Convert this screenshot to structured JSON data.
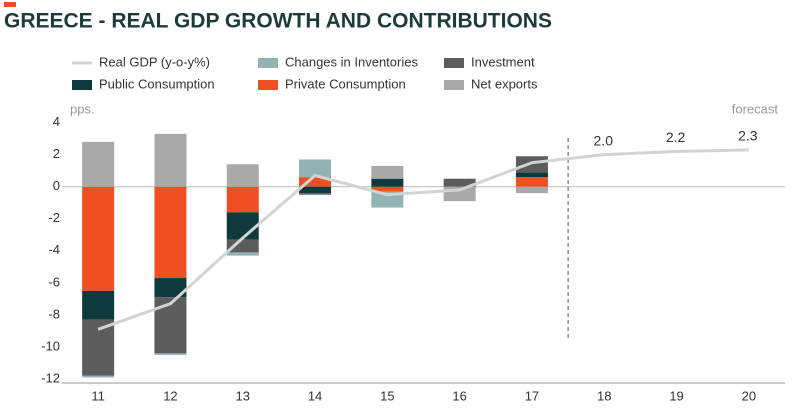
{
  "chart_data": {
    "type": "stacked_bar_line",
    "title": "GREECE - REAL GDP GROWTH AND CONTRIBUTIONS",
    "y_label": "pps.",
    "annotation": "forecast",
    "categories": [
      "11",
      "12",
      "13",
      "14",
      "15",
      "16",
      "17",
      "18",
      "19",
      "20"
    ],
    "series": [
      {
        "name": "Private Consumption",
        "color": "#f04e23",
        "values": [
          -6.5,
          -5.7,
          -1.6,
          0.6,
          -0.3,
          null,
          0.6,
          null,
          null,
          null
        ]
      },
      {
        "name": "Public Consumption",
        "color": "#0e3a3d",
        "values": [
          -1.8,
          -1.2,
          -1.7,
          -0.4,
          0.5,
          null,
          0.3,
          null,
          null,
          null
        ]
      },
      {
        "name": "Investment",
        "color": "#5c5c5c",
        "values": [
          -3.5,
          -3.5,
          -0.8,
          -0.1,
          null,
          0.5,
          1.0,
          null,
          null,
          null
        ]
      },
      {
        "name": "Changes in Inventories",
        "color": "#92b3b3",
        "values": [
          -0.1,
          -0.1,
          -0.2,
          1.1,
          -1.0,
          null,
          null,
          null,
          null,
          null
        ]
      },
      {
        "name": "Net exports",
        "color": "#a9a9a9",
        "values": [
          2.8,
          3.3,
          1.4,
          null,
          0.8,
          -0.9,
          -0.4,
          null,
          null,
          null
        ]
      }
    ],
    "line": {
      "name": "Real GDP (y-o-y%)",
      "color": "#d3d3d3",
      "values": [
        -8.9,
        -7.3,
        -3.2,
        0.7,
        -0.5,
        -0.2,
        1.5,
        2.0,
        2.2,
        2.3
      ],
      "value_labels": [
        null,
        null,
        null,
        null,
        null,
        null,
        null,
        "2.0",
        "2.2",
        "2.3"
      ]
    },
    "ylim": [
      -12.25,
      5.1
    ],
    "yticks": [
      4,
      2,
      0,
      -2,
      -4,
      -6,
      -8,
      -10,
      -12
    ],
    "forecast_after": "17"
  }
}
